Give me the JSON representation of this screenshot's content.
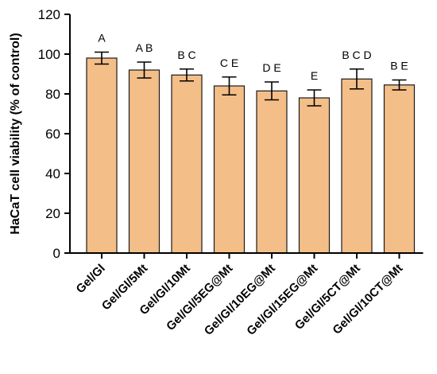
{
  "chart_data": {
    "type": "bar",
    "ylabel": "HaCaT cell viability (% of control)",
    "xlabel": "",
    "ylim": [
      0,
      120
    ],
    "yticks": [
      0,
      20,
      40,
      60,
      80,
      100,
      120
    ],
    "grid": false,
    "bar_color": "#f4be88",
    "bar_edge_color": "#1a1a1a",
    "categories": [
      "Gel/Gl",
      "Gel/Gl/5Mt",
      "Gel/Gl/10Mt",
      "Gel/Gl/5EG@Mt",
      "Gel/Gl/10EG@Mt",
      "Gel/Gl/15EG@Mt",
      "Gel/Gl/5CT@Mt",
      "Gel/Gl/10CT@Mt"
    ],
    "values": [
      98,
      92,
      89.5,
      84,
      81.5,
      78,
      87.5,
      84.5
    ],
    "errors": [
      3,
      4,
      3,
      4.5,
      4.5,
      4,
      5,
      2.5
    ],
    "significance_letters": [
      "A",
      "A B",
      "B C",
      "C E",
      "D E",
      "E",
      "B C D",
      "B E"
    ]
  }
}
